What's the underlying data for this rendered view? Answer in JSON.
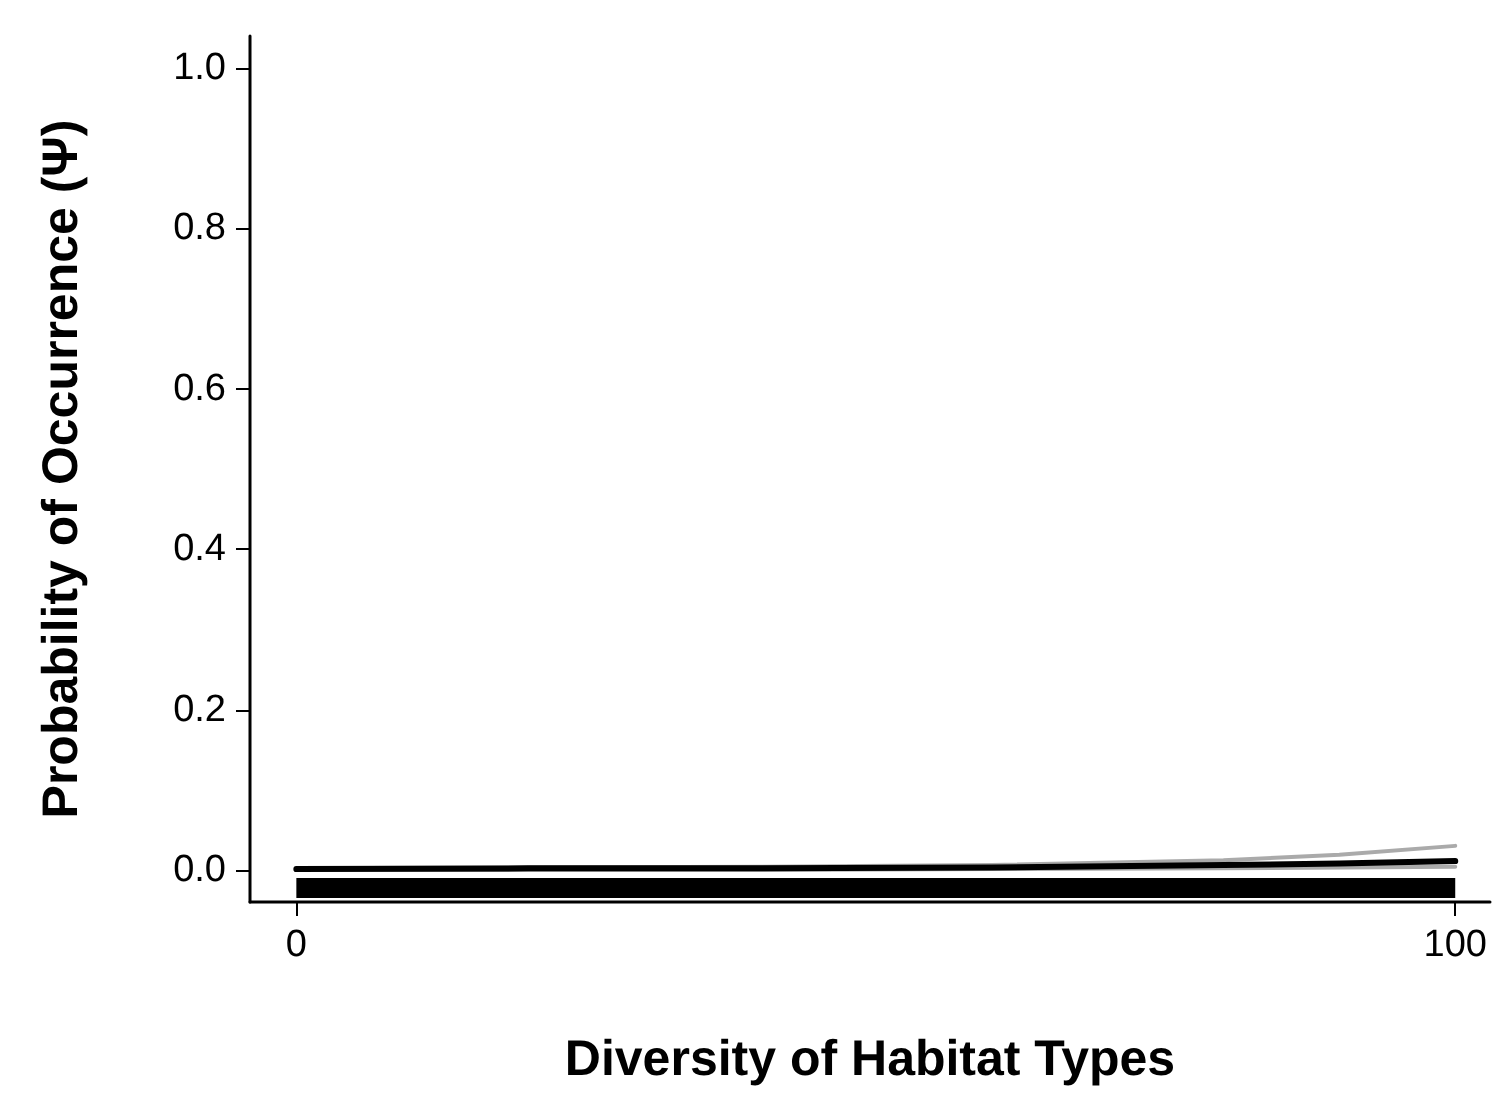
{
  "chart_data": {
    "type": "line",
    "xlabel": "Diversity of Habitat Types",
    "ylabel": "Probability of Occurrence (Ψ)",
    "x": [
      0,
      20,
      40,
      60,
      80,
      90,
      100
    ],
    "series": [
      {
        "color": "#aaaaaa",
        "values": [
          0.002,
          0.003,
          0.004,
          0.006,
          0.012,
          0.019,
          0.03
        ]
      },
      {
        "color": "#aaaaaa",
        "values": [
          0.0,
          0.0,
          0.0,
          0.001,
          0.002,
          0.003,
          0.004
        ]
      },
      {
        "color": "#000000",
        "values": [
          0.001,
          0.002,
          0.002,
          0.003,
          0.006,
          0.008,
          0.011
        ]
      }
    ],
    "xlim": [
      -4,
      103
    ],
    "ylim": [
      -0.04,
      1.04
    ],
    "xticks": [
      0,
      100
    ],
    "yticks": [
      {
        "value": 0,
        "label": "0.0"
      },
      {
        "value": 0.2,
        "label": "0.2"
      },
      {
        "value": 0.4,
        "label": "0.4"
      },
      {
        "value": 0.6,
        "label": "0.6"
      },
      {
        "value": 0.8,
        "label": "0.8"
      },
      {
        "value": 1,
        "label": "1.0"
      }
    ],
    "marker": "none",
    "line_style": "solid"
  }
}
